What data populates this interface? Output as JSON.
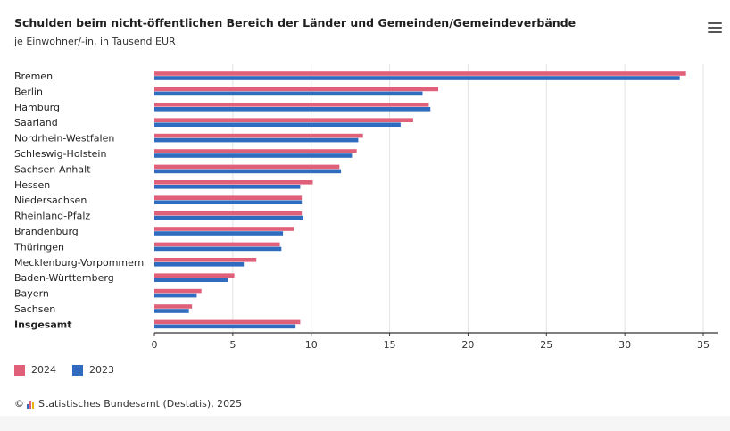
{
  "header": {
    "title": "Schulden beim nicht-öffentlichen Bereich der Länder und Gemeinden/Gemeindeverbände",
    "subtitle": "je Einwohner/-in, in Tausend EUR",
    "menu_icon": "hamburger-menu-icon"
  },
  "colors": {
    "series_2024": "#e0607a",
    "series_2023": "#2f6bbf",
    "grid": "#e3e3e3",
    "axis": "#333333"
  },
  "chart_data": {
    "type": "bar",
    "orientation": "horizontal",
    "title": "Schulden beim nicht-öffentlichen Bereich der Länder und Gemeinden/Gemeindeverbände",
    "subtitle": "je Einwohner/-in, in Tausend EUR",
    "xlabel": "",
    "ylabel": "",
    "xlim": [
      0,
      35
    ],
    "xticks": [
      0,
      5,
      10,
      15,
      20,
      25,
      30,
      35
    ],
    "grid": true,
    "legend_position": "bottom-left",
    "categories": [
      "Bremen",
      "Berlin",
      "Hamburg",
      "Saarland",
      "Nordrhein-Westfalen",
      "Schleswig-Holstein",
      "Sachsen-Anhalt",
      "Hessen",
      "Niedersachsen",
      "Rheinland-Pfalz",
      "Brandenburg",
      "Thüringen",
      "Mecklenburg-Vorpommern",
      "Baden-Württemberg",
      "Bayern",
      "Sachsen",
      "Insgesamt"
    ],
    "bold_categories": [
      "Insgesamt"
    ],
    "series": [
      {
        "name": "2024",
        "color": "#e0607a",
        "values": [
          33.9,
          18.1,
          17.5,
          16.5,
          13.3,
          12.9,
          11.8,
          10.1,
          9.4,
          9.4,
          8.9,
          8.0,
          6.5,
          5.1,
          3.0,
          2.4,
          9.3
        ]
      },
      {
        "name": "2023",
        "color": "#2f6bbf",
        "values": [
          33.5,
          17.1,
          17.6,
          15.7,
          13.0,
          12.6,
          11.9,
          9.3,
          9.4,
          9.5,
          8.2,
          8.1,
          5.7,
          4.7,
          2.7,
          2.2,
          9.0
        ]
      }
    ]
  },
  "legend": {
    "items": [
      {
        "label": "2024",
        "color": "#e0607a"
      },
      {
        "label": "2023",
        "color": "#2f6bbf"
      }
    ]
  },
  "footer": {
    "copyright": "©",
    "source": "Statistisches Bundesamt (Destatis), 2025"
  }
}
